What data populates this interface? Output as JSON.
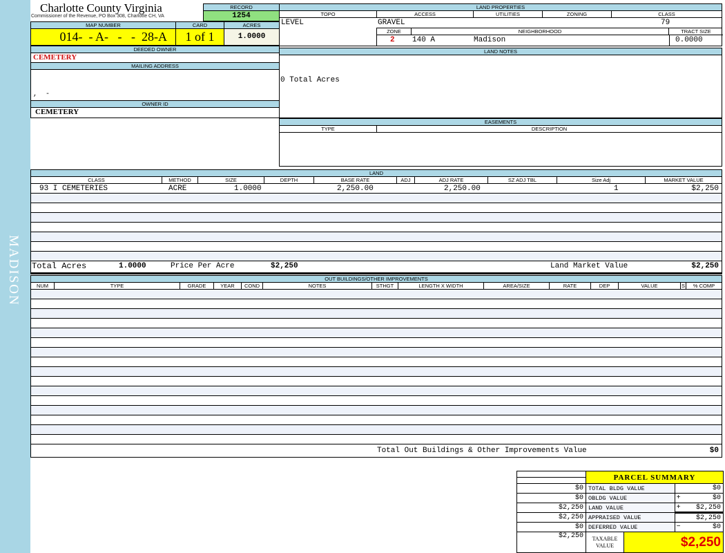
{
  "sidebar": {
    "label": "MADISON"
  },
  "header": {
    "title": "Charlotte County Virginia",
    "subtitle": "Commissioner of the Revenue, PO Box 308, Charlotte CH, VA"
  },
  "record": {
    "label": "RECORD",
    "value": "1254"
  },
  "map": {
    "label": "MAP NUMBER",
    "value": "014-  - A-   -   -  28-A",
    "card_label": "CARD",
    "card_value": "1 of 1",
    "acres_label": "ACRES",
    "acres_value": "1.0000"
  },
  "owner": {
    "deeded_label": "DEEDED OWNER",
    "deeded_value": "CEMETERY",
    "mailing_label": "MAILING ADDRESS",
    "mailing_value": ",  -",
    "owner_id_label": "OWNER ID",
    "owner_id_value": "CEMETERY"
  },
  "land_properties": {
    "label": "LAND PROPERTIES",
    "topo_label": "TOPO",
    "access_label": "ACCESS",
    "utilities_label": "UTILITIES",
    "zoning_label": "ZONING",
    "class_label": "CLASS",
    "topo": "LEVEL",
    "access": "GRAVEL",
    "class": "79",
    "zone_label": "ZONE",
    "neighborhood_label": "NEIGHBORHOOD",
    "tract_label": "TRACT SIZE",
    "zone": "2",
    "neighborhood_code": "140 A",
    "neighborhood": "Madison",
    "tract_size": "0.0000"
  },
  "land_notes": {
    "label": "LAND NOTES",
    "text": "0 Total Acres"
  },
  "easements": {
    "label": "EASEMENTS",
    "type_label": "TYPE",
    "description_label": "DESCRIPTION"
  },
  "land": {
    "label": "LAND",
    "columns": [
      "CLASS",
      "METHOD",
      "SIZE",
      "DEPTH",
      "BASE RATE",
      "ADJ",
      "ADJ RATE",
      "SZ ADJ TBL",
      "Size Adj",
      "MARKET VALUE"
    ],
    "rows": [
      {
        "class": "93 I CEMETERIES",
        "method": "ACRE",
        "size": "1.0000",
        "depth": "",
        "base_rate": "2,250.00",
        "adj": "",
        "adj_rate": "2,250.00",
        "sz_adj_tbl": "",
        "size_adj": "1",
        "market_value": "$2,250"
      }
    ],
    "total_acres_label": "Total Acres",
    "total_acres": "1.0000",
    "price_label": "Price Per Acre",
    "price": "$2,250",
    "market_label": "Land Market Value",
    "market": "$2,250"
  },
  "outbuildings": {
    "label": "OUT BUILDINGS/OTHER IMPROVEMENTS",
    "columns": [
      "NUM",
      "TYPE",
      "GRADE",
      "YEAR",
      "COND",
      "NOTES",
      "STHGT",
      "LENGTH X WIDTH",
      "AREA/SIZE",
      "RATE",
      "DEP",
      "VALUE",
      "S",
      "% COMP"
    ],
    "total_label": "Total Out Buildings & Other Improvements Value",
    "total": "$0"
  },
  "summary": {
    "title": "PARCEL SUMMARY",
    "rows": [
      {
        "left": "$0",
        "label": "TOTAL BLDG VALUE",
        "op": "",
        "value": "$0"
      },
      {
        "left": "$0",
        "label": "OBLDG VALUE",
        "op": "+",
        "value": "$0"
      },
      {
        "left": "$2,250",
        "label": "LAND VALUE",
        "op": "+",
        "value": "$2,250"
      },
      {
        "left": "$2,250",
        "label": "APPRAISED VALUE",
        "op": "",
        "value": "$2,250"
      },
      {
        "left": "$0",
        "label": "DEFERRED VALUE",
        "op": "−",
        "value": "$0"
      }
    ],
    "taxable_left": "$2,250",
    "taxable_label": "TAXABLE VALUE",
    "taxable": "$2,250"
  },
  "colors": {
    "header_blue": "#add8e6",
    "yellow": "#ffff00",
    "green": "#90e080",
    "red": "#d01010"
  }
}
